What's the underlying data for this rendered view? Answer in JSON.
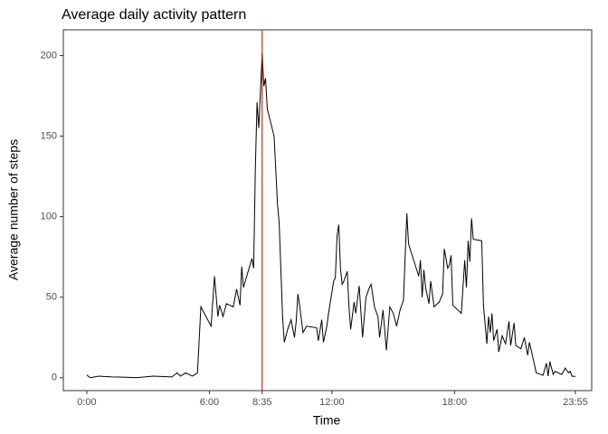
{
  "chart_data": {
    "type": "line",
    "title": "Average daily activity pattern",
    "xlabel": "Time",
    "ylabel": "Average number of steps",
    "x": [
      0,
      10,
      35,
      75,
      115,
      145,
      195,
      250,
      265,
      275,
      290,
      310,
      325,
      335,
      365,
      375,
      385,
      390,
      400,
      410,
      430,
      440,
      450,
      455,
      460,
      485,
      490,
      495,
      500,
      505,
      510,
      515,
      520,
      525,
      530,
      550,
      560,
      565,
      575,
      580,
      590,
      600,
      610,
      615,
      620,
      625,
      635,
      645,
      675,
      680,
      690,
      695,
      705,
      710,
      725,
      730,
      735,
      740,
      745,
      750,
      755,
      765,
      770,
      775,
      785,
      790,
      800,
      810,
      820,
      830,
      835,
      845,
      855,
      860,
      870,
      880,
      890,
      900,
      910,
      920,
      930,
      940,
      945,
      960,
      975,
      980,
      985,
      990,
      995,
      1005,
      1010,
      1020,
      1035,
      1045,
      1050,
      1060,
      1065,
      1070,
      1075,
      1100,
      1110,
      1115,
      1120,
      1125,
      1130,
      1135,
      1160,
      1165,
      1175,
      1180,
      1185,
      1190,
      1195,
      1205,
      1210,
      1220,
      1230,
      1240,
      1245,
      1255,
      1260,
      1275,
      1285,
      1295,
      1300,
      1315,
      1320,
      1340,
      1350,
      1355,
      1360,
      1370,
      1375,
      1395,
      1405,
      1415,
      1420,
      1425,
      1435
    ],
    "series": [
      {
        "name": "steps",
        "color": "#000000",
        "values": [
          1.7,
          0,
          1,
          0.5,
          0.3,
          0,
          1,
          0.5,
          3,
          1,
          3,
          1,
          3,
          44,
          32,
          63,
          38,
          45,
          38,
          46,
          44,
          55,
          45,
          69,
          56,
          74,
          68,
          130,
          171,
          155,
          178,
          201,
          181,
          186,
          167,
          150,
          108,
          96,
          38,
          22,
          30,
          36,
          25,
          35,
          52,
          45,
          28,
          32,
          31,
          23,
          36,
          22,
          32,
          40,
          60,
          62,
          88,
          95,
          68,
          58,
          60,
          66,
          44,
          30,
          47,
          40,
          57,
          25,
          50,
          56,
          58,
          44,
          38,
          25,
          42,
          17,
          44,
          40,
          32,
          42,
          48,
          102,
          83,
          73,
          63,
          73,
          50,
          67,
          56,
          46,
          60,
          44,
          47,
          52,
          80,
          68,
          70,
          76,
          45,
          40,
          73,
          56,
          85,
          72,
          99,
          86,
          85,
          45,
          21,
          38,
          28,
          40,
          23,
          30,
          16,
          26,
          21,
          35,
          20,
          34,
          20,
          18,
          25,
          14,
          22,
          8,
          3,
          1.5,
          9,
          1,
          10,
          2,
          4,
          2,
          6,
          3,
          4,
          1,
          0.8
        ]
      }
    ],
    "vline": {
      "x": 515,
      "color": "#cc0000"
    },
    "xlim": [
      -69,
      1483
    ],
    "ylim": [
      -8,
      216
    ],
    "xticks": [
      {
        "value": 0,
        "label": "0:00"
      },
      {
        "value": 360,
        "label": "6:00"
      },
      {
        "value": 515,
        "label": "8:35"
      },
      {
        "value": 720,
        "label": "12:00"
      },
      {
        "value": 1080,
        "label": "18:00"
      },
      {
        "value": 1435,
        "label": "23:55"
      }
    ],
    "yticks": [
      0,
      50,
      100,
      150,
      200
    ]
  }
}
